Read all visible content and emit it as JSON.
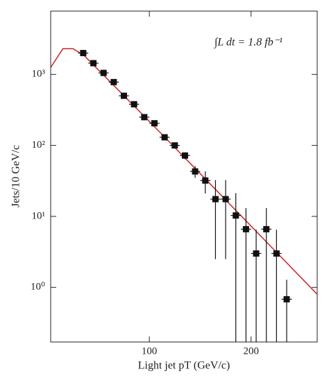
{
  "chart_data": {
    "type": "scatter",
    "annotation": "∫L dt = 1.8 fb⁻¹",
    "xlabel": "Light jet pT (GeV/c)",
    "ylabel": "Jets/10 GeV/c",
    "x": [
      35,
      45,
      55,
      65,
      75,
      85,
      95,
      105,
      115,
      125,
      135,
      145,
      155,
      165,
      175,
      185,
      195,
      205,
      215,
      225,
      235
    ],
    "values": [
      2000,
      1440,
      1050,
      780,
      500,
      380,
      250,
      205,
      130,
      100,
      72,
      43,
      32,
      17.5,
      17.5,
      10.3,
      6.6,
      3,
      6.6,
      3,
      0.68
    ],
    "errors": [
      40,
      30,
      25,
      20,
      15,
      15,
      12,
      12,
      10,
      9,
      8,
      8,
      11,
      15,
      15,
      11,
      6.5,
      3.5,
      6.5,
      3.5,
      0.6
    ],
    "xerr": 5,
    "color": "#111111",
    "line": {
      "color": "#cc2222",
      "x": [
        3,
        15,
        25,
        32,
        35,
        100,
        150,
        200,
        265
      ],
      "values": [
        1250,
        2300,
        2300,
        2000,
        1900,
        218,
        40,
        7.3,
        0.8
      ]
    },
    "xlim": [
      3,
      265
    ],
    "xticks": [
      100,
      200
    ],
    "ylim": [
      0.17,
      7800
    ],
    "ylog": true,
    "yticks": [
      {
        "value": 1,
        "label": "10⁰"
      },
      {
        "value": 10,
        "label": "10¹"
      },
      {
        "value": 100,
        "label": "10²"
      },
      {
        "value": 1000,
        "label": "10³"
      }
    ]
  }
}
